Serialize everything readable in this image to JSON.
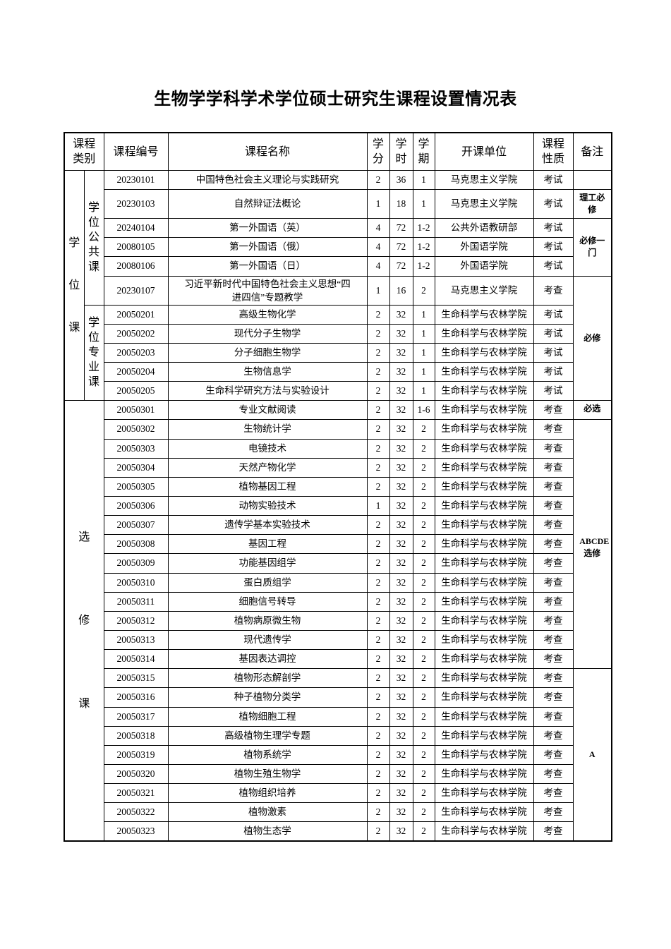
{
  "title": "生物学学科学术学位硕士研究生课程设置情况表",
  "headers": [
    "课程类别",
    "课程编号",
    "课程名称",
    "学分",
    "学时",
    "学期",
    "开课单位",
    "课程性质",
    "备注"
  ],
  "categories": {
    "degree": "学位课",
    "degree_public": "学位公共课",
    "degree_major": "学位专业课",
    "elective": "选修课"
  },
  "remarks": [
    "",
    "理工必修",
    "必修一门",
    "必修",
    "必选",
    "ABCDE选修",
    "A"
  ],
  "rows": [
    [
      "20230101",
      "中国特色社会主义理论与实践研究",
      "2",
      "36",
      "1",
      "马克思主义学院",
      "考试"
    ],
    [
      "20230103",
      "自然辩证法概论",
      "1",
      "18",
      "1",
      "马克思主义学院",
      "考试"
    ],
    [
      "20240104",
      "第一外国语（英）",
      "4",
      "72",
      "1-2",
      "公共外语教研部",
      "考试"
    ],
    [
      "20080105",
      "第一外国语（俄）",
      "4",
      "72",
      "1-2",
      "外国语学院",
      "考试"
    ],
    [
      "20080106",
      "第一外国语（日）",
      "4",
      "72",
      "1-2",
      "外国语学院",
      "考试"
    ],
    [
      "20230107",
      "习近平新时代中国特色社会主义思想“四进四信”专题教学",
      "1",
      "16",
      "2",
      "马克思主义学院",
      "考查"
    ],
    [
      "20050201",
      "高级生物化学",
      "2",
      "32",
      "1",
      "生命科学与农林学院",
      "考试"
    ],
    [
      "20050202",
      "现代分子生物学",
      "2",
      "32",
      "1",
      "生命科学与农林学院",
      "考试"
    ],
    [
      "20050203",
      "分子细胞生物学",
      "2",
      "32",
      "1",
      "生命科学与农林学院",
      "考试"
    ],
    [
      "20050204",
      "生物信息学",
      "2",
      "32",
      "1",
      "生命科学与农林学院",
      "考试"
    ],
    [
      "20050205",
      "生命科学研究方法与实验设计",
      "2",
      "32",
      "1",
      "生命科学与农林学院",
      "考试"
    ],
    [
      "20050301",
      "专业文献阅读",
      "2",
      "32",
      "1-6",
      "生命科学与农林学院",
      "考查"
    ],
    [
      "20050302",
      "生物统计学",
      "2",
      "32",
      "2",
      "生命科学与农林学院",
      "考查"
    ],
    [
      "20050303",
      "电镜技术",
      "2",
      "32",
      "2",
      "生命科学与农林学院",
      "考查"
    ],
    [
      "20050304",
      "天然产物化学",
      "2",
      "32",
      "2",
      "生命科学与农林学院",
      "考查"
    ],
    [
      "20050305",
      "植物基因工程",
      "2",
      "32",
      "2",
      "生命科学与农林学院",
      "考查"
    ],
    [
      "20050306",
      "动物实验技术",
      "1",
      "32",
      "2",
      "生命科学与农林学院",
      "考查"
    ],
    [
      "20050307",
      "遗传学基本实验技术",
      "2",
      "32",
      "2",
      "生命科学与农林学院",
      "考查"
    ],
    [
      "20050308",
      "基因工程",
      "2",
      "32",
      "2",
      "生命科学与农林学院",
      "考查"
    ],
    [
      "20050309",
      "功能基因组学",
      "2",
      "32",
      "2",
      "生命科学与农林学院",
      "考查"
    ],
    [
      "20050310",
      "蛋白质组学",
      "2",
      "32",
      "2",
      "生命科学与农林学院",
      "考查"
    ],
    [
      "20050311",
      "细胞信号转导",
      "2",
      "32",
      "2",
      "生命科学与农林学院",
      "考查"
    ],
    [
      "20050312",
      "植物病原微生物",
      "2",
      "32",
      "2",
      "生命科学与农林学院",
      "考查"
    ],
    [
      "20050313",
      "现代遗传学",
      "2",
      "32",
      "2",
      "生命科学与农林学院",
      "考查"
    ],
    [
      "20050314",
      "基因表达调控",
      "2",
      "32",
      "2",
      "生命科学与农林学院",
      "考查"
    ],
    [
      "20050315",
      "植物形态解剖学",
      "2",
      "32",
      "2",
      "生命科学与农林学院",
      "考查"
    ],
    [
      "20050316",
      "种子植物分类学",
      "2",
      "32",
      "2",
      "生命科学与农林学院",
      "考查"
    ],
    [
      "20050317",
      "植物细胞工程",
      "2",
      "32",
      "2",
      "生命科学与农林学院",
      "考查"
    ],
    [
      "20050318",
      "高级植物生理学专题",
      "2",
      "32",
      "2",
      "生命科学与农林学院",
      "考查"
    ],
    [
      "20050319",
      "植物系统学",
      "2",
      "32",
      "2",
      "生命科学与农林学院",
      "考查"
    ],
    [
      "20050320",
      "植物生殖生物学",
      "2",
      "32",
      "2",
      "生命科学与农林学院",
      "考查"
    ],
    [
      "20050321",
      "植物组织培养",
      "2",
      "32",
      "2",
      "生命科学与农林学院",
      "考查"
    ],
    [
      "20050322",
      "植物激素",
      "2",
      "32",
      "2",
      "生命科学与农林学院",
      "考查"
    ],
    [
      "20050323",
      "植物生态学",
      "2",
      "32",
      "2",
      "生命科学与农林学院",
      "考查"
    ]
  ]
}
